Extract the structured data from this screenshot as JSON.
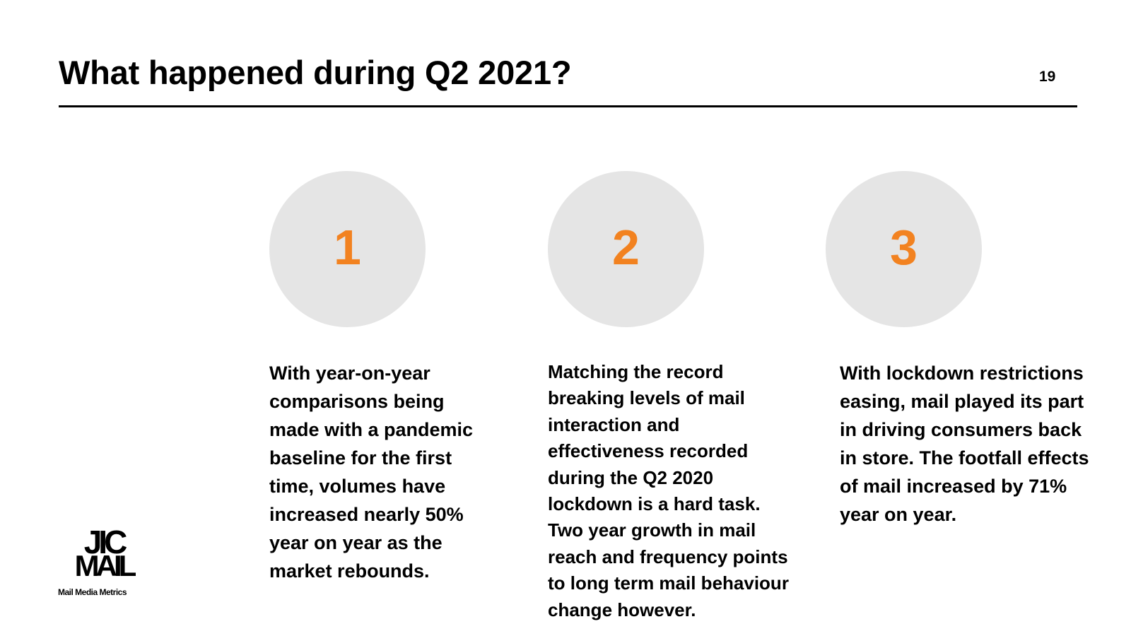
{
  "header": {
    "title": "What happened during Q2 2021?",
    "page_number": "19"
  },
  "accent_color": "#f28220",
  "circle_color": "#e5e5e5",
  "points": [
    {
      "number": "1",
      "lines": [
        "With year-on-year",
        "comparisons being",
        "made with a pandemic",
        "baseline for the first",
        "time, volumes have",
        "increased nearly 50%",
        "year on year as the",
        "market rebounds."
      ]
    },
    {
      "number": "2",
      "lines": [
        "Matching the record",
        "breaking levels of mail",
        "interaction and",
        "effectiveness recorded",
        "during the Q2 2020",
        "lockdown is a hard task.",
        "Two year growth in mail",
        "reach and frequency points",
        "to long term mail behaviour",
        "change however."
      ]
    },
    {
      "number": "3",
      "lines": [
        "With lockdown restrictions",
        "easing, mail played its part",
        "in driving consumers back",
        "in store. The footfall effects",
        "of mail increased by 71%",
        "year on year."
      ]
    }
  ],
  "logo": {
    "top_word": "JIC",
    "bottom_word": "MAIL",
    "tagline": "Mail Media Metrics"
  }
}
